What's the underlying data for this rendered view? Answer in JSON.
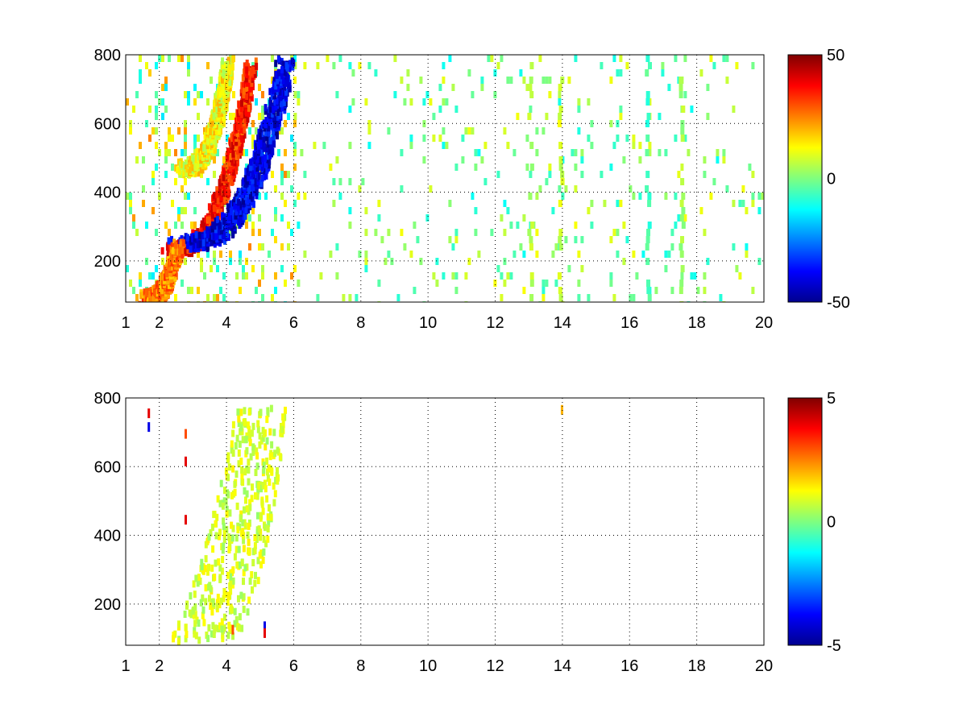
{
  "chart_data": [
    {
      "type": "heatmap",
      "title": "",
      "xlabel": "",
      "ylabel": "",
      "xlim": [
        1,
        20
      ],
      "ylim": [
        80,
        800
      ],
      "x_ticks": [
        1,
        2,
        4,
        6,
        8,
        10,
        12,
        14,
        16,
        18,
        20
      ],
      "y_ticks": [
        200,
        400,
        600,
        800
      ],
      "grid": true,
      "colormap": "jet",
      "colorbar": {
        "min": -50,
        "max": 50,
        "ticks": [
          -50,
          0,
          50
        ]
      },
      "features": [
        {
          "kind": "band",
          "x_start": 2.1,
          "y_start": 240,
          "x_end": 4.7,
          "y_end": 780,
          "value": 35
        },
        {
          "kind": "band",
          "x_start": 2.5,
          "y_start": 260,
          "x_end": 5.7,
          "y_end": 780,
          "value": -40
        },
        {
          "kind": "band",
          "x_start": 1.5,
          "y_start": 100,
          "x_end": 2.5,
          "y_end": 250,
          "value": 25
        },
        {
          "kind": "band",
          "x_start": 2.6,
          "y_start": 480,
          "x_end": 4.0,
          "y_end": 780,
          "value": 12
        }
      ],
      "noise": [
        {
          "x_range": [
            1,
            6
          ],
          "density": 0.18,
          "values": [
            -15,
            25
          ]
        },
        {
          "x_range": [
            6,
            20
          ],
          "density": 0.07,
          "values": [
            -12,
            12
          ]
        }
      ],
      "columns": [
        {
          "x": 13.0,
          "value": 5
        },
        {
          "x": 13.9,
          "value": 8
        },
        {
          "x": 16.5,
          "value": -6
        },
        {
          "x": 17.5,
          "value": 4
        }
      ]
    },
    {
      "type": "heatmap",
      "title": "",
      "xlabel": "",
      "ylabel": "",
      "xlim": [
        1,
        20
      ],
      "ylim": [
        80,
        800
      ],
      "x_ticks": [
        1,
        2,
        4,
        6,
        8,
        10,
        12,
        14,
        16,
        18,
        20
      ],
      "y_ticks": [
        200,
        400,
        600,
        800
      ],
      "grid": true,
      "colormap": "jet",
      "colorbar": {
        "min": -5,
        "max": 5,
        "ticks": [
          -5,
          0,
          5
        ]
      },
      "region": {
        "x_start": 1.9,
        "x_end": 5.8,
        "value_range": [
          0.2,
          1.4
        ],
        "density": 0.6
      },
      "outliers": [
        {
          "x": 1.7,
          "y": 720,
          "value": -4
        },
        {
          "x": 1.7,
          "y": 760,
          "value": 4
        },
        {
          "x": 2.8,
          "y": 620,
          "value": 4
        },
        {
          "x": 2.8,
          "y": 700,
          "value": 3
        },
        {
          "x": 2.8,
          "y": 450,
          "value": 4
        },
        {
          "x": 5.15,
          "y": 140,
          "value": -4
        },
        {
          "x": 5.15,
          "y": 120,
          "value": 4
        },
        {
          "x": 4.2,
          "y": 130,
          "value": 3
        },
        {
          "x": 14.0,
          "y": 770,
          "value": 2
        }
      ]
    }
  ]
}
